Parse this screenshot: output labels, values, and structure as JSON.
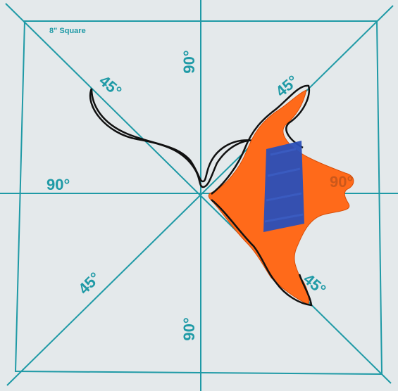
{
  "board_title": "8\" Square",
  "angle_labels": {
    "top_90": "90°",
    "left_90": "90°",
    "bottom_90": "90°",
    "right_90": "90°",
    "upper_left_45": "45°",
    "upper_right_45": "45°",
    "lower_left_45": "45°",
    "lower_right_45": "45°"
  },
  "colors": {
    "board": "#e5eaec",
    "grid_lines": "#1f9aa6",
    "template": "#ff6a1a",
    "tape": "#2a4fb8",
    "traced_outline": "#111111"
  }
}
